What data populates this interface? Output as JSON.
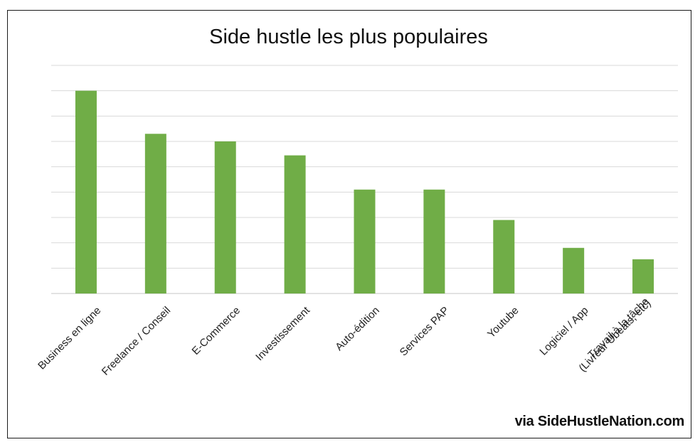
{
  "chart_data": {
    "type": "bar",
    "title": "Side hustle les plus populaires",
    "categories": [
      "Business en ligne",
      "Freelance / Conseil",
      "E-Commerce",
      "Investissement",
      "Auto-édition",
      "Services PAP",
      "Youtube",
      "Logiciel / App",
      "Travail à la tâche (Livreur Ubeats, etc)"
    ],
    "category_lines": [
      [
        "Business en ligne"
      ],
      [
        "Freelance / Conseil"
      ],
      [
        "E-Commerce"
      ],
      [
        "Investissement"
      ],
      [
        "Auto-édition"
      ],
      [
        "Services PAP"
      ],
      [
        "Youtube"
      ],
      [
        "Logiciel / App"
      ],
      [
        "Travail à la tâche",
        "(Livreur Ubeats, etc)"
      ]
    ],
    "values": [
      8.0,
      6.3,
      6.0,
      5.45,
      4.1,
      4.1,
      2.9,
      1.8,
      1.35
    ],
    "ylim": [
      0,
      9
    ],
    "grid": true,
    "bar_color": "#70ad47",
    "grid_color": "#d9d9d9"
  },
  "credit": "via SideHustleNation.com"
}
